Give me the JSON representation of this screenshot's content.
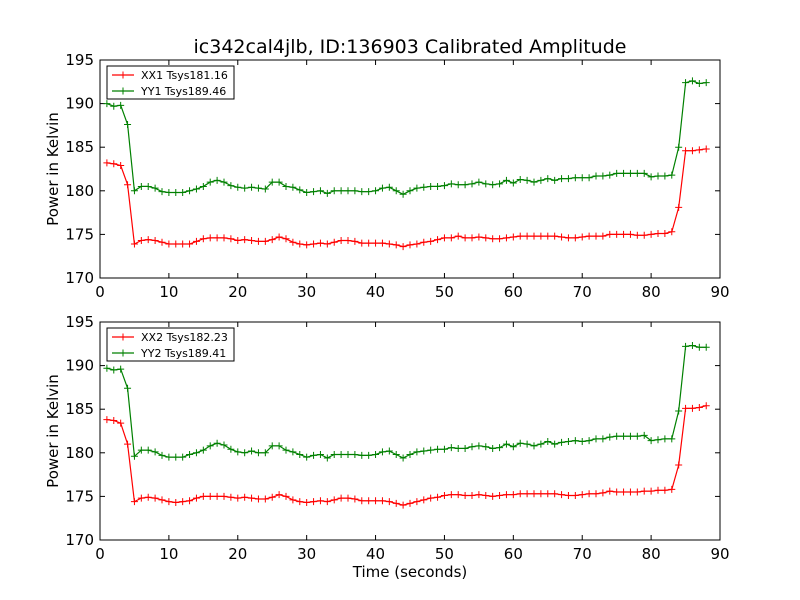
{
  "figure_title": "ic342cal4jlb, ID:136903 Calibrated Amplitude",
  "chart_data": [
    {
      "type": "line",
      "title": "ic342cal4jlb, ID:136903 Calibrated Amplitude",
      "xlabel": "",
      "ylabel": "Power in Kelvin",
      "xlim": [
        0,
        90
      ],
      "ylim": [
        170,
        195
      ],
      "xticks": [
        0,
        10,
        20,
        30,
        40,
        50,
        60,
        70,
        80,
        90
      ],
      "yticks": [
        170,
        175,
        180,
        185,
        190,
        195
      ],
      "grid": false,
      "legend_position": "top-left",
      "series": [
        {
          "name": "XX1 Tsys181.16",
          "color": "#ff0000",
          "marker": "plus",
          "x": [
            1,
            2,
            3,
            4,
            5,
            6,
            7,
            8,
            9,
            10,
            11,
            12,
            13,
            14,
            15,
            16,
            17,
            18,
            19,
            20,
            21,
            22,
            23,
            24,
            25,
            26,
            27,
            28,
            29,
            30,
            31,
            32,
            33,
            34,
            35,
            36,
            37,
            38,
            39,
            40,
            41,
            42,
            43,
            44,
            45,
            46,
            47,
            48,
            49,
            50,
            51,
            52,
            53,
            54,
            55,
            56,
            57,
            58,
            59,
            60,
            61,
            62,
            63,
            64,
            65,
            66,
            67,
            68,
            69,
            70,
            71,
            72,
            73,
            74,
            75,
            76,
            77,
            78,
            79,
            80,
            81,
            82,
            83,
            84,
            85,
            86,
            87,
            88
          ],
          "y": [
            183.2,
            183.1,
            182.9,
            180.7,
            173.9,
            174.3,
            174.4,
            174.3,
            174.1,
            173.9,
            173.9,
            173.9,
            173.9,
            174.2,
            174.5,
            174.6,
            174.6,
            174.6,
            174.5,
            174.3,
            174.4,
            174.3,
            174.2,
            174.2,
            174.4,
            174.7,
            174.5,
            174.1,
            173.9,
            173.8,
            173.9,
            174.0,
            173.9,
            174.1,
            174.3,
            174.3,
            174.2,
            174.0,
            174.0,
            174.0,
            174.0,
            173.9,
            173.8,
            173.6,
            173.8,
            173.9,
            174.1,
            174.2,
            174.4,
            174.6,
            174.6,
            174.8,
            174.6,
            174.6,
            174.7,
            174.6,
            174.5,
            174.5,
            174.6,
            174.7,
            174.8,
            174.8,
            174.8,
            174.8,
            174.8,
            174.8,
            174.7,
            174.6,
            174.6,
            174.7,
            174.8,
            174.8,
            174.8,
            175.0,
            175.0,
            175.0,
            175.0,
            174.9,
            174.9,
            175.0,
            175.1,
            175.1,
            175.3,
            178.1,
            184.6,
            184.6,
            184.7,
            184.8
          ]
        },
        {
          "name": "YY1 Tsys189.46",
          "color": "#008000",
          "marker": "plus",
          "x": [
            1,
            2,
            3,
            4,
            5,
            6,
            7,
            8,
            9,
            10,
            11,
            12,
            13,
            14,
            15,
            16,
            17,
            18,
            19,
            20,
            21,
            22,
            23,
            24,
            25,
            26,
            27,
            28,
            29,
            30,
            31,
            32,
            33,
            34,
            35,
            36,
            37,
            38,
            39,
            40,
            41,
            42,
            43,
            44,
            45,
            46,
            47,
            48,
            49,
            50,
            51,
            52,
            53,
            54,
            55,
            56,
            57,
            58,
            59,
            60,
            61,
            62,
            63,
            64,
            65,
            66,
            67,
            68,
            69,
            70,
            71,
            72,
            73,
            74,
            75,
            76,
            77,
            78,
            79,
            80,
            81,
            82,
            83,
            84,
            85,
            86,
            87,
            88
          ],
          "y": [
            190.0,
            189.7,
            189.8,
            187.6,
            180.0,
            180.5,
            180.5,
            180.3,
            179.9,
            179.8,
            179.8,
            179.8,
            180.0,
            180.2,
            180.5,
            181.0,
            181.2,
            181.0,
            180.6,
            180.4,
            180.3,
            180.4,
            180.3,
            180.2,
            181.0,
            181.0,
            180.5,
            180.4,
            180.1,
            179.8,
            179.9,
            180.0,
            179.7,
            180.0,
            180.0,
            180.0,
            180.0,
            179.9,
            179.9,
            180.0,
            180.3,
            180.4,
            180.0,
            179.6,
            180.0,
            180.3,
            180.4,
            180.5,
            180.5,
            180.6,
            180.8,
            180.7,
            180.7,
            180.8,
            181.0,
            180.8,
            180.7,
            180.8,
            181.2,
            180.9,
            181.3,
            181.2,
            181.0,
            181.2,
            181.4,
            181.2,
            181.4,
            181.4,
            181.5,
            181.5,
            181.5,
            181.7,
            181.7,
            181.8,
            182.0,
            182.0,
            182.0,
            182.0,
            182.0,
            181.6,
            181.7,
            181.7,
            181.8,
            185.0,
            192.4,
            192.6,
            192.3,
            192.4
          ]
        }
      ]
    },
    {
      "type": "line",
      "title": "",
      "xlabel": "Time (seconds)",
      "ylabel": "Power in Kelvin",
      "xlim": [
        0,
        90
      ],
      "ylim": [
        170,
        195
      ],
      "xticks": [
        0,
        10,
        20,
        30,
        40,
        50,
        60,
        70,
        80,
        90
      ],
      "yticks": [
        170,
        175,
        180,
        185,
        190,
        195
      ],
      "grid": false,
      "legend_position": "top-left",
      "series": [
        {
          "name": "XX2 Tsys182.23",
          "color": "#ff0000",
          "marker": "plus",
          "x": [
            1,
            2,
            3,
            4,
            5,
            6,
            7,
            8,
            9,
            10,
            11,
            12,
            13,
            14,
            15,
            16,
            17,
            18,
            19,
            20,
            21,
            22,
            23,
            24,
            25,
            26,
            27,
            28,
            29,
            30,
            31,
            32,
            33,
            34,
            35,
            36,
            37,
            38,
            39,
            40,
            41,
            42,
            43,
            44,
            45,
            46,
            47,
            48,
            49,
            50,
            51,
            52,
            53,
            54,
            55,
            56,
            57,
            58,
            59,
            60,
            61,
            62,
            63,
            64,
            65,
            66,
            67,
            68,
            69,
            70,
            71,
            72,
            73,
            74,
            75,
            76,
            77,
            78,
            79,
            80,
            81,
            82,
            83,
            84,
            85,
            86,
            87,
            88
          ],
          "y": [
            183.8,
            183.7,
            183.4,
            181.0,
            174.4,
            174.8,
            174.9,
            174.8,
            174.6,
            174.4,
            174.3,
            174.4,
            174.5,
            174.8,
            175.0,
            175.0,
            175.0,
            175.0,
            174.9,
            174.8,
            174.9,
            174.8,
            174.7,
            174.7,
            174.9,
            175.2,
            175.0,
            174.6,
            174.4,
            174.3,
            174.4,
            174.5,
            174.4,
            174.6,
            174.8,
            174.8,
            174.7,
            174.5,
            174.5,
            174.5,
            174.5,
            174.4,
            174.2,
            174.0,
            174.2,
            174.4,
            174.6,
            174.8,
            174.9,
            175.1,
            175.2,
            175.2,
            175.1,
            175.1,
            175.2,
            175.1,
            175.0,
            175.1,
            175.2,
            175.2,
            175.3,
            175.3,
            175.3,
            175.3,
            175.3,
            175.3,
            175.2,
            175.1,
            175.1,
            175.2,
            175.3,
            175.3,
            175.4,
            175.6,
            175.5,
            175.5,
            175.5,
            175.5,
            175.6,
            175.6,
            175.7,
            175.7,
            175.8,
            178.6,
            185.1,
            185.1,
            185.2,
            185.4
          ]
        },
        {
          "name": "YY2 Tsys189.41",
          "color": "#008000",
          "marker": "plus",
          "x": [
            1,
            2,
            3,
            4,
            5,
            6,
            7,
            8,
            9,
            10,
            11,
            12,
            13,
            14,
            15,
            16,
            17,
            18,
            19,
            20,
            21,
            22,
            23,
            24,
            25,
            26,
            27,
            28,
            29,
            30,
            31,
            32,
            33,
            34,
            35,
            36,
            37,
            38,
            39,
            40,
            41,
            42,
            43,
            44,
            45,
            46,
            47,
            48,
            49,
            50,
            51,
            52,
            53,
            54,
            55,
            56,
            57,
            58,
            59,
            60,
            61,
            62,
            63,
            64,
            65,
            66,
            67,
            68,
            69,
            70,
            71,
            72,
            73,
            74,
            75,
            76,
            77,
            78,
            79,
            80,
            81,
            82,
            83,
            84,
            85,
            86,
            87,
            88
          ],
          "y": [
            189.7,
            189.5,
            189.6,
            187.4,
            179.6,
            180.3,
            180.3,
            180.1,
            179.7,
            179.5,
            179.5,
            179.5,
            179.8,
            180.0,
            180.3,
            180.8,
            181.1,
            180.9,
            180.4,
            180.1,
            180.0,
            180.2,
            180.0,
            180.0,
            180.8,
            180.8,
            180.3,
            180.1,
            179.8,
            179.5,
            179.7,
            179.8,
            179.4,
            179.8,
            179.8,
            179.8,
            179.8,
            179.7,
            179.7,
            179.8,
            180.1,
            180.2,
            179.8,
            179.4,
            179.8,
            180.1,
            180.2,
            180.3,
            180.4,
            180.4,
            180.6,
            180.5,
            180.5,
            180.7,
            180.8,
            180.7,
            180.5,
            180.6,
            181.0,
            180.7,
            181.1,
            181.0,
            180.8,
            181.0,
            181.3,
            181.0,
            181.2,
            181.3,
            181.4,
            181.3,
            181.4,
            181.6,
            181.6,
            181.8,
            181.9,
            181.9,
            181.9,
            181.9,
            182.0,
            181.4,
            181.5,
            181.6,
            181.6,
            184.8,
            192.2,
            192.3,
            192.1,
            192.1
          ]
        }
      ]
    }
  ]
}
